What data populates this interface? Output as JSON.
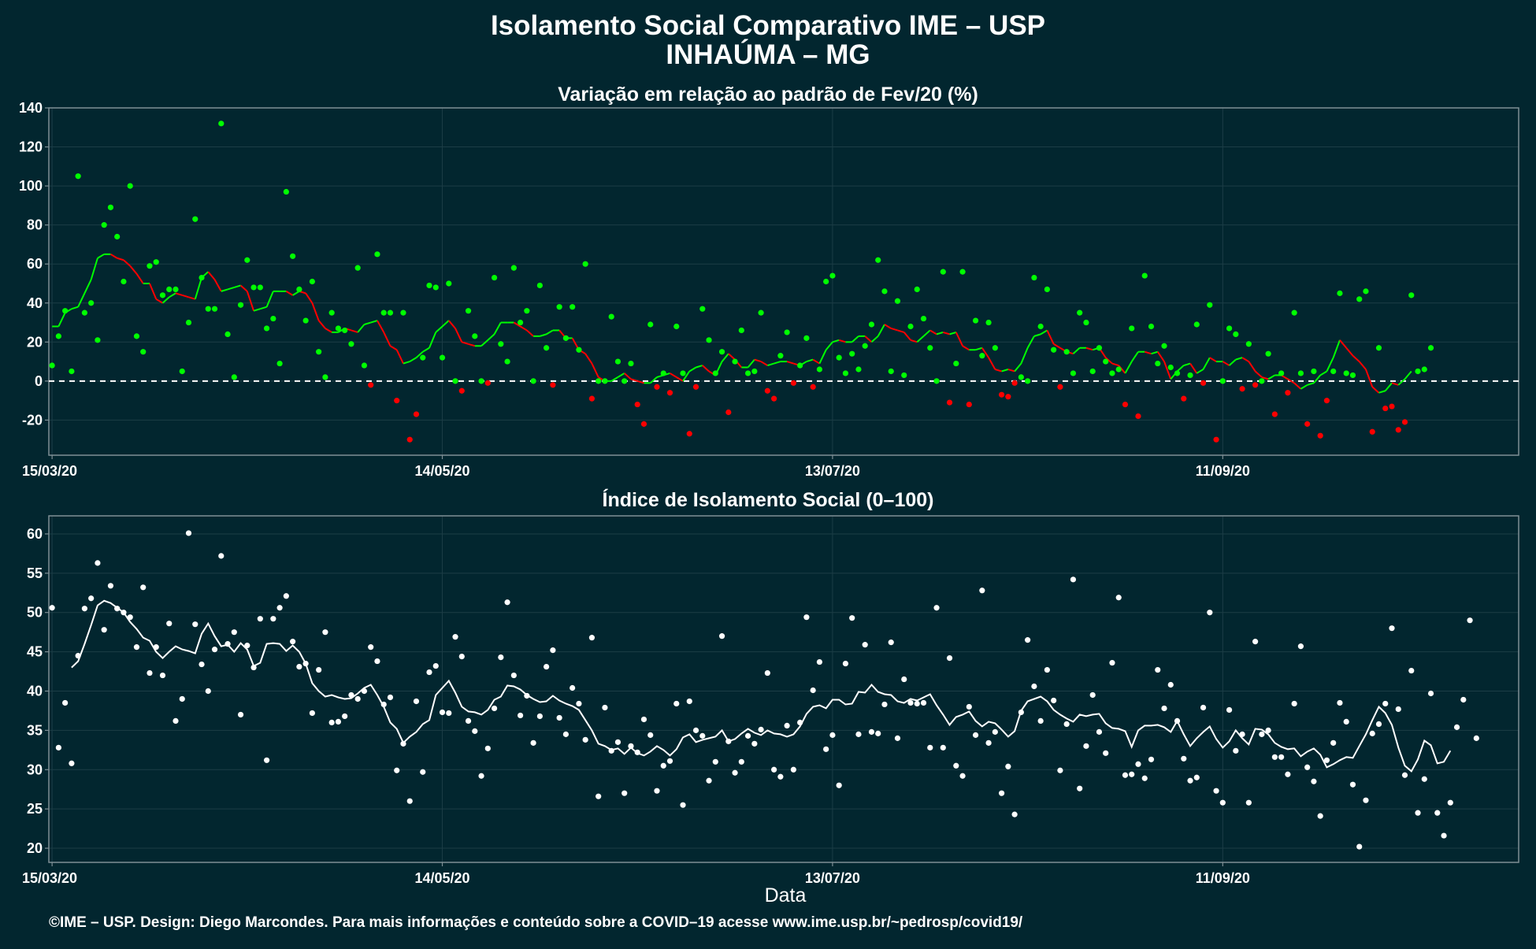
{
  "header": {
    "title_line1": "Isolamento Social Comparativo IME – USP",
    "title_line2": "INHAÚMA – MG"
  },
  "footer": "©IME – USP. Design: Diego Marcondes. Para mais informações e conteúdo sobre a COVID–19 acesse www.ime.usp.br/~pedrosp/covid19/",
  "colors": {
    "background": "#02262f",
    "positive": "#00ff00",
    "negative": "#ff0000",
    "index_points": "#ffffff",
    "grid": "#1c3d46",
    "frame": "#7f8f95"
  },
  "chart_data": [
    {
      "type": "scatter",
      "title": "Variação em relação ao padrão de Fev/20 (%)",
      "xlabel": "",
      "ylabel": "",
      "x_start": "15/03/20",
      "x_ticks": [
        {
          "day": 0,
          "label": "15/03/20"
        },
        {
          "day": 60,
          "label": "14/05/20"
        },
        {
          "day": 120,
          "label": "13/07/20"
        },
        {
          "day": 180,
          "label": "11/09/20"
        }
      ],
      "y_ticks": [
        -20,
        0,
        20,
        40,
        60,
        80,
        100,
        120,
        140
      ],
      "ylim": [
        -38,
        140
      ],
      "reference_line": 0,
      "grid": true,
      "legend": "none",
      "series": [
        {
          "role": "daily_points",
          "values": [
            8,
            23,
            36,
            5,
            105,
            35,
            40,
            21,
            80,
            89,
            74,
            51,
            100,
            23,
            15,
            59,
            61,
            44,
            47,
            47,
            5,
            30,
            83,
            53,
            37,
            37,
            132,
            24,
            2,
            39,
            62,
            48,
            48,
            27,
            32,
            9,
            97,
            64,
            47,
            31,
            51,
            15,
            2,
            35,
            27,
            26,
            19,
            58,
            8,
            -2,
            65,
            35,
            35,
            -10,
            35,
            -30,
            -17,
            12,
            49,
            48,
            12,
            50,
            0,
            -5,
            36,
            23,
            0,
            -1,
            53,
            19,
            10,
            58,
            30,
            36,
            0,
            49,
            17,
            -2,
            38,
            22,
            38,
            16,
            60,
            -9,
            0,
            0,
            33,
            10,
            0,
            9,
            -12,
            -22,
            29,
            -3,
            4,
            -6,
            28,
            4,
            -27,
            -3,
            37,
            21,
            4,
            15,
            -16,
            10,
            26,
            4,
            5,
            35,
            -5,
            -9,
            13,
            25,
            -1,
            8,
            22,
            -3,
            6,
            51,
            54,
            12,
            4,
            14,
            6,
            18,
            29,
            62,
            46,
            5,
            41,
            3,
            28,
            47,
            32,
            17,
            0,
            56,
            -11,
            9,
            56,
            -12,
            31,
            13,
            30,
            17,
            -7,
            -8,
            -1,
            2,
            0,
            53,
            28,
            47,
            16,
            -3,
            15,
            4,
            35,
            30,
            5,
            17,
            10,
            4,
            6,
            -12,
            27,
            -18,
            54,
            28,
            9,
            18,
            7,
            4,
            -9,
            3,
            29,
            -1,
            39,
            -30,
            0,
            27,
            24,
            -4,
            19,
            -2,
            0,
            14,
            -17,
            4,
            -6,
            35,
            4,
            -22,
            5,
            -28,
            -10,
            5,
            45,
            4,
            3,
            42,
            46,
            -26,
            17,
            -14,
            -13,
            -25,
            -21,
            44,
            5,
            6,
            17
          ]
        },
        {
          "role": "moving_average",
          "values": [
            28,
            28,
            35,
            37,
            38,
            45,
            52,
            63,
            65,
            65,
            63,
            62,
            59,
            55,
            50,
            50,
            42,
            40,
            43,
            45,
            44,
            43,
            42,
            53,
            56,
            52,
            46,
            47,
            48,
            49,
            46,
            36,
            37,
            38,
            46,
            46,
            46,
            44,
            46,
            45,
            40,
            31,
            27,
            25,
            25,
            27,
            26,
            25,
            29,
            30,
            31,
            25,
            18,
            16,
            9,
            10,
            12,
            15,
            17,
            25,
            28,
            31,
            27,
            20,
            19,
            18,
            18,
            21,
            24,
            30,
            30,
            30,
            28,
            26,
            23,
            23,
            24,
            26,
            26,
            22,
            22,
            16,
            14,
            9,
            2,
            0,
            0,
            2,
            4,
            1,
            0,
            -1,
            -1,
            2,
            3,
            4,
            2,
            0,
            5,
            7,
            8,
            5,
            3,
            10,
            14,
            11,
            7,
            7,
            11,
            10,
            8,
            9,
            10,
            10,
            9,
            8,
            10,
            11,
            9,
            16,
            20,
            21,
            20,
            20,
            23,
            23,
            20,
            23,
            29,
            27,
            26,
            25,
            21,
            20,
            23,
            26,
            24,
            25,
            24,
            25,
            18,
            16,
            16,
            17,
            12,
            6,
            5,
            6,
            5,
            9,
            17,
            23,
            24,
            26,
            19,
            17,
            15,
            14,
            17,
            17,
            16,
            17,
            12,
            9,
            8,
            4,
            10,
            15,
            15,
            14,
            15,
            10,
            1,
            5,
            8,
            9,
            4,
            6,
            12,
            10,
            10,
            8,
            11,
            12,
            10,
            5,
            2,
            1,
            3,
            3,
            1,
            -1,
            -4,
            -2,
            -1,
            3,
            5,
            12,
            21,
            17,
            13,
            10,
            6,
            -3,
            -6,
            -5,
            -1,
            -2,
            1,
            5
          ]
        }
      ]
    },
    {
      "type": "scatter",
      "title": "Índice de Isolamento Social (0–100)",
      "xlabel": "Data",
      "ylabel": "",
      "x_start": "15/03/20",
      "x_ticks": [
        {
          "day": 0,
          "label": "15/03/20"
        },
        {
          "day": 60,
          "label": "14/05/20"
        },
        {
          "day": 120,
          "label": "13/07/20"
        },
        {
          "day": 180,
          "label": "11/09/20"
        }
      ],
      "y_ticks": [
        20,
        25,
        30,
        35,
        40,
        45,
        50,
        55,
        60
      ],
      "ylim": [
        18.2,
        62.3
      ],
      "grid": true,
      "legend": "none",
      "series": [
        {
          "role": "daily_points",
          "values": [
            50.6,
            32.8,
            38.5,
            30.8,
            44.5,
            50.5,
            51.8,
            56.3,
            47.8,
            53.4,
            50.5,
            50.0,
            49.4,
            45.6,
            53.2,
            42.3,
            45.6,
            42.0,
            48.6,
            36.2,
            39.0,
            60.1,
            48.5,
            43.4,
            40.0,
            45.3,
            57.2,
            46.0,
            47.5,
            37.0,
            45.8,
            43.0,
            49.2,
            31.2,
            49.2,
            50.6,
            52.1,
            46.3,
            43.1,
            43.5,
            37.2,
            42.7,
            47.5,
            36.0,
            36.1,
            36.8,
            39.5,
            39.0,
            40.0,
            45.6,
            43.8,
            38.3,
            39.2,
            29.9,
            33.3,
            26.0,
            38.7,
            29.7,
            42.4,
            43.2,
            37.3,
            37.2,
            46.9,
            44.4,
            36.2,
            34.9,
            29.2,
            32.7,
            37.8,
            44.3,
            51.3,
            42.0,
            36.9,
            39.4,
            33.4,
            36.8,
            43.1,
            45.2,
            36.6,
            34.5,
            40.4,
            38.4,
            33.8,
            46.8,
            26.6,
            37.9,
            32.4,
            33.5,
            27.0,
            33.0,
            32.2,
            36.4,
            34.4,
            27.3,
            30.5,
            31.1,
            38.4,
            25.5,
            38.7,
            35.0,
            34.3,
            28.6,
            31.0,
            47.0,
            33.6,
            29.6,
            31.0,
            34.3,
            33.3,
            35.1,
            42.3,
            30.0,
            29.1,
            35.6,
            30.0,
            36.0,
            49.4,
            40.1,
            43.7,
            32.6,
            34.4,
            28.0,
            43.5,
            49.3,
            34.5,
            45.9,
            34.8,
            34.6,
            38.3,
            46.2,
            34.0,
            41.5,
            38.5,
            38.4,
            38.5,
            32.8,
            50.6,
            32.8,
            44.2,
            30.5,
            29.2,
            38.0,
            34.4,
            52.8,
            33.4,
            34.8,
            27.0,
            30.4,
            24.3,
            37.3,
            46.5,
            40.6,
            36.2,
            42.7,
            38.8,
            29.9,
            35.8,
            54.2,
            27.6,
            33.0,
            39.5,
            34.8,
            32.1,
            43.6,
            51.9,
            29.3,
            29.4,
            30.7,
            28.9,
            31.3,
            42.7,
            37.8,
            40.8,
            36.2,
            31.4,
            28.6,
            29.0,
            37.9,
            50.0,
            27.3,
            25.8,
            37.6,
            32.4,
            34.5,
            25.8,
            46.3,
            34.5,
            35.0,
            31.6,
            31.6,
            29.4,
            38.4,
            45.7,
            30.3,
            28.5,
            24.1,
            31.2,
            33.4,
            38.5,
            36.1,
            28.1,
            20.2,
            26.1,
            34.6,
            35.8,
            38.4,
            48.0,
            37.7,
            29.3,
            42.6,
            24.5,
            28.8,
            39.7,
            24.5,
            21.6,
            25.8,
            35.4,
            38.9,
            49.0,
            34.0
          ]
        },
        {
          "role": "moving_average",
          "values": [
            null,
            null,
            null,
            43.0,
            43.8,
            46.0,
            48.4,
            50.9,
            51.5,
            51.2,
            50.6,
            50.0,
            48.8,
            47.9,
            46.8,
            46.4,
            45.0,
            44.2,
            45.0,
            45.7,
            45.3,
            45.1,
            44.8,
            47.3,
            48.6,
            47.0,
            45.7,
            45.9,
            45.0,
            46.1,
            45.3,
            43.2,
            43.6,
            46.0,
            46.1,
            46.0,
            45.1,
            45.8,
            45.0,
            43.5,
            41.0,
            40.0,
            39.3,
            39.5,
            39.2,
            39.0,
            39.1,
            39.7,
            40.4,
            40.8,
            39.5,
            38.0,
            36.0,
            35.2,
            33.4,
            34.2,
            34.8,
            35.8,
            36.3,
            39.5,
            40.4,
            41.3,
            39.8,
            38.0,
            37.4,
            37.3,
            37.0,
            37.6,
            38.9,
            39.3,
            40.7,
            40.6,
            40.2,
            39.5,
            39.0,
            38.6,
            38.7,
            39.4,
            38.8,
            38.4,
            38.1,
            37.6,
            36.3,
            35.0,
            33.3,
            33.0,
            32.5,
            32.7,
            32.0,
            32.8,
            32.1,
            31.8,
            32.3,
            33.0,
            32.5,
            31.8,
            32.6,
            34.1,
            34.5,
            33.5,
            33.8,
            34.0,
            34.2,
            35.0,
            33.6,
            33.9,
            34.6,
            35.2,
            34.7,
            34.4,
            35.0,
            34.6,
            34.5,
            34.2,
            34.5,
            35.5,
            37.1,
            38.0,
            38.2,
            37.8,
            38.9,
            38.9,
            38.3,
            38.4,
            39.9,
            39.8,
            40.8,
            39.9,
            39.6,
            39.5,
            38.7,
            38.5,
            39.0,
            38.8,
            39.2,
            39.6,
            38.2,
            37.0,
            35.7,
            36.7,
            37.0,
            37.4,
            36.2,
            35.5,
            36.1,
            35.9,
            35.1,
            34.2,
            34.9,
            37.5,
            38.7,
            39.0,
            39.3,
            38.7,
            37.6,
            37.0,
            36.5,
            36.1,
            37.0,
            36.8,
            37.0,
            37.1,
            35.9,
            35.3,
            35.2,
            34.9,
            32.9,
            35.0,
            35.6,
            35.6,
            35.7,
            35.4,
            34.8,
            36.2,
            34.5,
            33.0,
            34.0,
            34.8,
            35.5,
            33.9,
            32.8,
            33.6,
            35.0,
            34.0,
            33.2,
            35.2,
            35.1,
            34.5,
            33.4,
            32.9,
            32.6,
            32.7,
            31.7,
            32.3,
            32.7,
            31.9,
            30.3,
            30.7,
            31.2,
            31.6,
            31.5,
            33.0,
            34.5,
            36.3,
            38.0,
            37.2,
            35.7,
            32.8,
            30.5,
            29.8,
            31.3,
            33.7,
            33.1,
            30.8,
            31.0,
            32.4
          ]
        }
      ]
    }
  ]
}
